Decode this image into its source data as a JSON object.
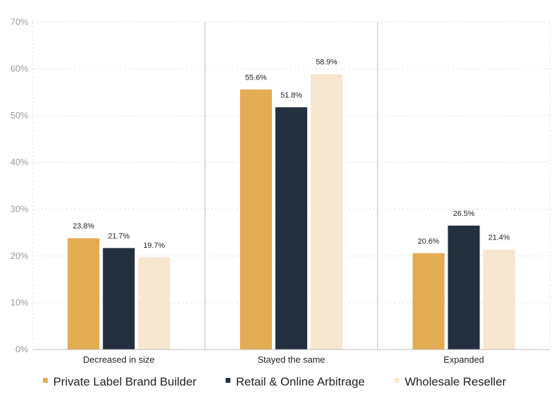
{
  "chart_data": {
    "type": "bar",
    "categories": [
      "Decreased in size",
      "Stayed the same",
      "Expanded"
    ],
    "series": [
      {
        "name": "Private Label Brand Builder",
        "values": [
          23.8,
          55.6,
          20.6
        ],
        "labels": [
          "23.8%",
          "55.6%",
          "20.6%"
        ],
        "color": "#e3ab52"
      },
      {
        "name": "Retail & Online Arbitrage",
        "values": [
          21.7,
          51.8,
          26.5
        ],
        "labels": [
          "21.7%",
          "51.8%",
          "26.5%"
        ],
        "color": "#243040"
      },
      {
        "name": "Wholesale Reseller",
        "values": [
          19.7,
          58.9,
          21.4
        ],
        "labels": [
          "19.7%",
          "58.9%",
          "21.4%"
        ],
        "color": "#f6e6d0"
      }
    ],
    "yticks": [
      "0%",
      "10%",
      "20%",
      "30%",
      "40%",
      "50%",
      "60%",
      "70%"
    ],
    "ylim": [
      0,
      70
    ],
    "title": "",
    "xlabel": "",
    "ylabel": "",
    "grid": true,
    "legend_position": "bottom"
  }
}
